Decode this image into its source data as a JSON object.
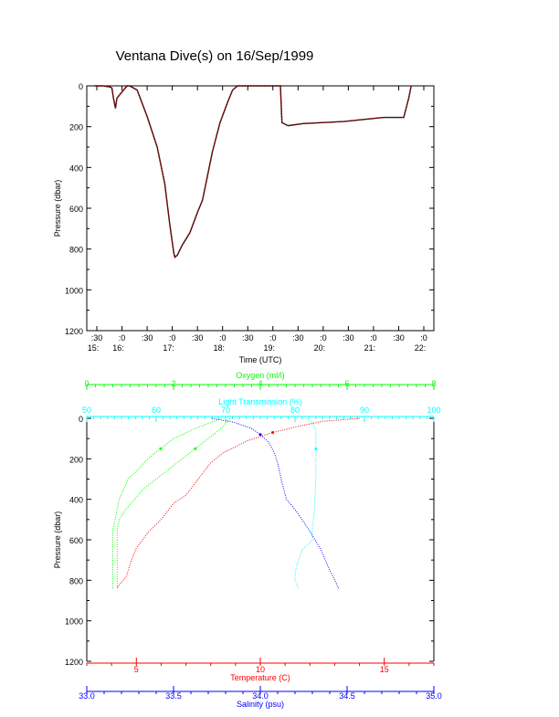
{
  "page": {
    "title": "Ventana Dive(s) on 16/Sep/1999",
    "colors": {
      "axis": "#000000",
      "red": "#ff0000",
      "green": "#00ff00",
      "cyan": "#00ffff",
      "blue": "#0000ff"
    }
  },
  "chart_data": [
    {
      "type": "line",
      "title": "Ventana Dive(s) on 16/Sep/1999",
      "xlabel": "Time (UTC)",
      "ylabel": "Pressure (dbar)",
      "ylim": [
        1200,
        0
      ],
      "y_ticks": [
        0,
        200,
        400,
        600,
        800,
        1000,
        1200
      ],
      "x_ticks": [
        {
          "t": 15.5,
          "line1": ":30",
          "line2": "15:"
        },
        {
          "t": 16.0,
          "line1": ":0",
          "line2": "16:"
        },
        {
          "t": 16.5,
          "line1": ":30",
          "line2": ""
        },
        {
          "t": 17.0,
          "line1": ":0",
          "line2": "17:"
        },
        {
          "t": 17.5,
          "line1": ":30",
          "line2": ""
        },
        {
          "t": 18.0,
          "line1": ":0",
          "line2": "18:"
        },
        {
          "t": 18.5,
          "line1": ":30",
          "line2": ""
        },
        {
          "t": 19.0,
          "line1": ":0",
          "line2": "19:"
        },
        {
          "t": 19.5,
          "line1": ":30",
          "line2": ""
        },
        {
          "t": 20.0,
          "line1": ":0",
          "line2": "20:"
        },
        {
          "t": 20.5,
          "line1": ":30",
          "line2": ""
        },
        {
          "t": 21.0,
          "line1": ":0",
          "line2": "21:"
        },
        {
          "t": 21.5,
          "line1": ":30",
          "line2": ""
        },
        {
          "t": 22.0,
          "line1": ":0",
          "line2": "22:"
        }
      ],
      "xlim": [
        15.3,
        22.2
      ],
      "series": [
        {
          "color": "#ff0000",
          "x": [
            15.45,
            15.55,
            15.62,
            15.75,
            15.8,
            15.83,
            15.87,
            15.9,
            16.1,
            16.15,
            16.3,
            16.5,
            16.7,
            16.85,
            16.95,
            17.03,
            17.05,
            17.1,
            17.2,
            17.35,
            17.5,
            17.6,
            17.7,
            17.8,
            17.95,
            18.1,
            18.2,
            18.3,
            18.5,
            18.7,
            18.9,
            19.05,
            19.15,
            19.18,
            19.3,
            19.6,
            20.0,
            20.4,
            20.8,
            21.2,
            21.5,
            21.6,
            21.7,
            21.75
          ],
          "y": [
            0,
            0,
            0,
            5,
            10,
            60,
            110,
            60,
            0,
            0,
            20,
            150,
            300,
            480,
            680,
            820,
            840,
            830,
            780,
            720,
            620,
            560,
            440,
            320,
            180,
            80,
            20,
            0,
            0,
            0,
            0,
            0,
            0,
            180,
            195,
            185,
            180,
            175,
            165,
            155,
            155,
            155,
            60,
            0
          ]
        }
      ]
    },
    {
      "type": "scatter",
      "ylabel": "Pressure (dbar)",
      "ylim": [
        1200,
        0
      ],
      "y_ticks": [
        0,
        200,
        400,
        600,
        800,
        1000,
        1200
      ],
      "axes": [
        {
          "name": "Oxygen (ml/l)",
          "position": "top",
          "color": "#00ff00",
          "range": [
            0,
            8
          ],
          "ticks": [
            0,
            2,
            4,
            6,
            8
          ]
        },
        {
          "name": "Light Transmission (%)",
          "position": "top",
          "color": "#00ffff",
          "range": [
            50,
            100
          ],
          "ticks": [
            50,
            60,
            70,
            80,
            90,
            100
          ]
        },
        {
          "name": "Temperature (C)",
          "position": "bottom",
          "color": "#ff0000",
          "range": [
            3,
            17
          ],
          "ticks": [
            5,
            10,
            15
          ]
        },
        {
          "name": "Salinity (psu)",
          "position": "bottom",
          "color": "#0000ff",
          "range": [
            33.0,
            35.0
          ],
          "ticks": [
            "33.0",
            "33.5",
            "34.0",
            "34.5",
            "35.0"
          ]
        }
      ],
      "series": [
        {
          "axis": "Oxygen (ml/l)",
          "color": "#00ff00",
          "x": [
            3.1,
            2.5,
            2.0,
            1.7,
            1.4,
            1.2,
            0.95,
            0.85,
            0.75,
            0.7,
            0.65,
            0.6,
            0.6,
            0.6
          ],
          "y": [
            0,
            50,
            100,
            150,
            200,
            250,
            300,
            350,
            400,
            450,
            500,
            550,
            700,
            840
          ]
        },
        {
          "axis": "Oxygen (ml/l)",
          "color": "#00ff00",
          "x": [
            3.3,
            3.1,
            2.8,
            2.5,
            2.2,
            1.9,
            1.6,
            1.3,
            1.1,
            0.9,
            0.75,
            0.7,
            0.7,
            0.7
          ],
          "y": [
            0,
            50,
            100,
            150,
            200,
            250,
            300,
            350,
            400,
            450,
            500,
            550,
            700,
            840
          ]
        },
        {
          "axis": "Light Transmission (%)",
          "color": "#00ffff",
          "x": [
            81.5,
            82.5,
            83.0,
            83.0,
            83.0,
            82.8,
            82.5,
            82.5,
            82.0,
            81.0,
            80.5,
            80.0,
            80.0,
            80.5
          ],
          "y": [
            0,
            20,
            60,
            150,
            300,
            450,
            550,
            600,
            620,
            650,
            700,
            760,
            800,
            840
          ]
        },
        {
          "axis": "Temperature (C)",
          "color": "#ff0000",
          "x": [
            14.0,
            12.5,
            11.5,
            10.5,
            9.5,
            8.5,
            8.0,
            7.5,
            7.0,
            6.5,
            6.0,
            5.5,
            5.0,
            4.8,
            4.6,
            4.2
          ],
          "y": [
            0,
            15,
            40,
            70,
            110,
            170,
            220,
            300,
            380,
            420,
            500,
            560,
            640,
            700,
            780,
            840
          ]
        },
        {
          "axis": "Salinity (psu)",
          "color": "#0000ff",
          "x": [
            33.72,
            33.85,
            33.95,
            34.0,
            34.05,
            34.08,
            34.1,
            34.12,
            34.15,
            34.2,
            34.28,
            34.35,
            34.4,
            34.43,
            34.45
          ],
          "y": [
            0,
            20,
            50,
            80,
            120,
            170,
            220,
            300,
            400,
            450,
            550,
            650,
            750,
            800,
            840
          ]
        }
      ]
    }
  ]
}
